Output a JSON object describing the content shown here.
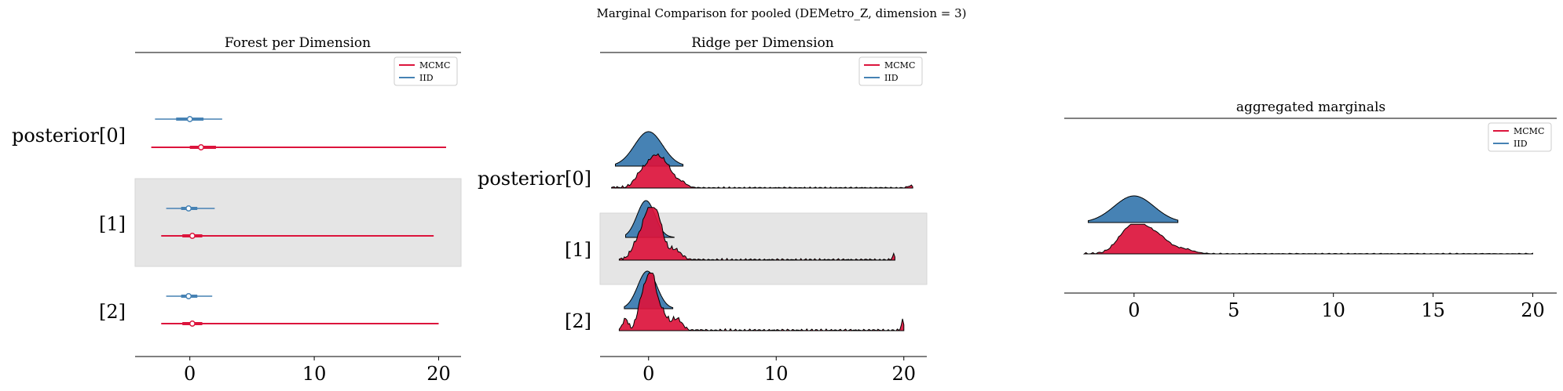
{
  "figure": {
    "suptitle": "Marginal Comparison for pooled (DEMetro_Z, dimension = 3)"
  },
  "colors": {
    "mcmc": "#dc143c",
    "iid": "#4682b4",
    "shade": "#e5e5e5"
  },
  "chart_data": [
    {
      "type": "forest",
      "title": "Forest per Dimension",
      "xlim": [
        -4.4,
        21.8
      ],
      "xticks": [
        0,
        10,
        20
      ],
      "row_labels": [
        "posterior[0]",
        "[1]",
        "[2]"
      ],
      "legend": {
        "placement": "top-right",
        "entries": [
          "MCMC",
          "IID"
        ]
      },
      "series": [
        {
          "name": "MCMC",
          "rows": [
            {
              "min": -3.1,
              "q25": 0.0,
              "median": 0.9,
              "q75": 2.1,
              "max": 20.6
            },
            {
              "min": -2.3,
              "q25": -0.6,
              "median": 0.2,
              "q75": 1.0,
              "max": 19.6
            },
            {
              "min": -2.3,
              "q25": -0.6,
              "median": 0.2,
              "q75": 1.0,
              "max": 20.0
            }
          ]
        },
        {
          "name": "IID",
          "rows": [
            {
              "min": -2.8,
              "q25": -1.1,
              "median": 0.0,
              "q75": 1.1,
              "max": 2.6
            },
            {
              "min": -1.9,
              "q25": -0.7,
              "median": -0.1,
              "q75": 0.6,
              "max": 2.0
            },
            {
              "min": -1.9,
              "q25": -0.7,
              "median": -0.1,
              "q75": 0.6,
              "max": 1.8
            }
          ]
        }
      ]
    },
    {
      "type": "ridge",
      "title": "Ridge per Dimension",
      "xlim": [
        -3.8,
        21.8
      ],
      "xticks": [
        0,
        10,
        20
      ],
      "row_labels": [
        "posterior[0]",
        "[1]",
        "[2]"
      ],
      "legend": {
        "placement": "top-right",
        "entries": [
          "MCMC",
          "IID"
        ]
      },
      "series": [
        {
          "name": "IID",
          "rows": [
            {
              "range": [
                -2.6,
                2.7
              ],
              "peaks": [
                [
                  0.0,
                  1.0,
                  1.1
                ]
              ]
            },
            {
              "range": [
                -1.8,
                2.0
              ],
              "peaks": [
                [
                  -0.2,
                  1.0,
                  0.7
                ]
              ]
            },
            {
              "range": [
                -1.9,
                1.9
              ],
              "peaks": [
                [
                  -0.1,
                  1.0,
                  0.75
                ]
              ]
            }
          ]
        },
        {
          "name": "MCMC",
          "rows": [
            {
              "range": [
                -2.9,
                20.7
              ],
              "peaks": [
                [
                  0.5,
                  0.85,
                  0.6
                ],
                [
                  -0.6,
                  0.35,
                  0.5
                ],
                [
                  1.5,
                  0.45,
                  0.5
                ],
                [
                  2.6,
                  0.15,
                  0.4
                ],
                [
                  20.5,
                  0.06,
                  0.2
                ]
              ]
            },
            {
              "range": [
                -2.3,
                19.3
              ],
              "peaks": [
                [
                  0.0,
                  0.95,
                  0.5
                ],
                [
                  0.8,
                  0.6,
                  0.4
                ],
                [
                  -1.0,
                  0.25,
                  0.4
                ],
                [
                  2.0,
                  0.2,
                  0.5
                ],
                [
                  19.2,
                  0.1,
                  0.1
                ]
              ]
            },
            {
              "range": [
                -2.3,
                20.0
              ],
              "peaks": [
                [
                  0.2,
                  1.0,
                  0.35
                ],
                [
                  -0.5,
                  0.55,
                  0.35
                ],
                [
                  1.0,
                  0.35,
                  0.4
                ],
                [
                  -1.8,
                  0.2,
                  0.2
                ],
                [
                  2.2,
                  0.2,
                  0.4
                ],
                [
                  19.9,
                  0.18,
                  0.1
                ]
              ]
            }
          ]
        }
      ]
    },
    {
      "type": "ridge",
      "title": "aggregated marginals",
      "xlim": [
        -3.5,
        21.2
      ],
      "xticks": [
        0,
        5,
        10,
        15,
        20
      ],
      "legend": {
        "placement": "top-right",
        "entries": [
          "MCMC",
          "IID"
        ]
      },
      "series": [
        {
          "name": "IID",
          "range": [
            -2.3,
            2.2
          ],
          "peaks": [
            [
              0.0,
              1.0,
              1.0
            ]
          ]
        },
        {
          "name": "MCMC",
          "range": [
            -2.5,
            20.0
          ],
          "peaks": [
            [
              0.3,
              0.9,
              0.55
            ],
            [
              -0.5,
              0.5,
              0.5
            ],
            [
              1.3,
              0.5,
              0.5
            ],
            [
              2.5,
              0.15,
              0.5
            ]
          ]
        }
      ]
    }
  ]
}
